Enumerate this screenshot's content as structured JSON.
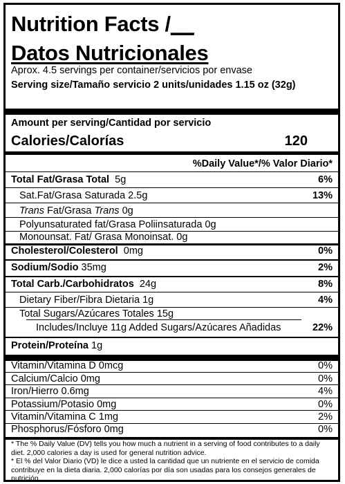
{
  "title_line1": "Nutrition Facts /",
  "title_blank": "__",
  "title_line2": "Datos Nutricionales",
  "servings_per_container": "Aprox. 4.5 servings per container/servicios por envase",
  "serving_size": "Serving size/Tamaño servicio 2 units/unidades 1.15 oz (32g)",
  "amount_per_serving": "Amount per serving/Cantidad por servicio",
  "calories_label": "Calories/Calorías",
  "calories_value": "120",
  "dv_header": "%Daily Value*/% Valor Diario*",
  "nutrients": {
    "total_fat": {
      "label": "Total Fat/Grasa Total",
      "amount": "5g",
      "dv": "6%"
    },
    "sat_fat": {
      "label": "Sat.Fat/Grasa Saturada",
      "amount": "2.5g",
      "dv": "13%"
    },
    "trans_fat": {
      "label_a": "Trans",
      "label_b": " Fat/Grasa ",
      "label_c": "Trans",
      "amount": "0g"
    },
    "poly_fat": {
      "label": "Polyunsaturated fat/Grasa Poliinsaturada",
      "amount": "0g"
    },
    "mono_fat": {
      "label": "Monounsat. Fat/ Grasa Monoinsat.",
      "amount": "0g"
    },
    "cholesterol": {
      "label": "Cholesterol/Colesterol",
      "amount": "0mg",
      "dv": "0%"
    },
    "sodium": {
      "label": "Sodium/Sodio",
      "amount": "35mg",
      "dv": "2%"
    },
    "total_carb": {
      "label": "Total Carb./Carbohidratos",
      "amount": "24g",
      "dv": "8%"
    },
    "fiber": {
      "label": "Dietary Fiber/Fibra Dietaria",
      "amount": "1g",
      "dv": "4%"
    },
    "total_sugars": {
      "label": "Total Sugars/Azúcares Totales",
      "amount": "15g"
    },
    "added_sugars": {
      "label": "Includes/Incluye 11g Added Sugars/Azúcares Añadidas",
      "dv": "22%"
    },
    "protein": {
      "label": "Protein/Proteína",
      "amount": "1g"
    }
  },
  "vitamins": [
    {
      "label": "Vitamin/Vitamina D 0mcg",
      "dv": "0%"
    },
    {
      "label": "Calcium/Calcio 0mg",
      "dv": "0%"
    },
    {
      "label": "Iron/Hierro 0.6mg",
      "dv": "4%"
    },
    {
      "label": "Potassium/Potasio 0mg",
      "dv": "0%"
    },
    {
      "label": "Vitamin/Vitamina C 1mg",
      "dv": "2%"
    },
    {
      "label": "Phosphorus/Fósforo 0mg",
      "dv": "0%"
    }
  ],
  "footnote_en": "* The % Daily Value (DV) tells you how much a nutrient in a serving of food contributes to a daily diet. 2,000 calories a day is used for general nutrition advice.",
  "footnote_es": "* El % del Valor Diario (VD) le dice a usted la cantidad que un nutriente en el servicio de comida contribuye en la dieta diaria. 2,000 calorías por día son usadas para los consejos generales de nutrición."
}
